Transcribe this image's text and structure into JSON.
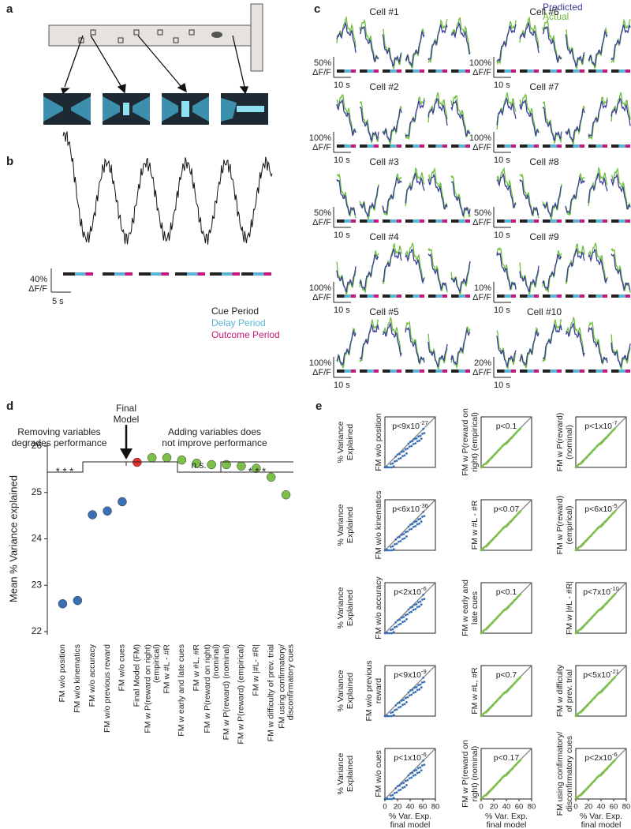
{
  "panel_labels": [
    "a",
    "b",
    "c",
    "d",
    "e"
  ],
  "panel_b": {
    "scale_y": "40%",
    "scale_unit": "ΔF/F",
    "scale_x": "5 s",
    "legend": [
      {
        "name": "Cue Period",
        "color": "#222222"
      },
      {
        "name": "Delay Period",
        "color": "#5ab4d6"
      },
      {
        "name": "Outcome Period",
        "color": "#c8177a"
      }
    ]
  },
  "panel_c": {
    "legend": [
      {
        "name": "Predicted",
        "color": "#3b3e98"
      },
      {
        "name": "Actual",
        "color": "#6cbf3c"
      }
    ],
    "scale_unit": "ΔF/F",
    "scale_x": "10 s",
    "cells": [
      {
        "title": "Cell #1",
        "scale_y": "50%"
      },
      {
        "title": "Cell #2",
        "scale_y": "100%"
      },
      {
        "title": "Cell #3",
        "scale_y": "50%"
      },
      {
        "title": "Cell #4",
        "scale_y": "100%"
      },
      {
        "title": "Cell #5",
        "scale_y": "100%"
      },
      {
        "title": "Cell #6",
        "scale_y": "100%"
      },
      {
        "title": "Cell #7",
        "scale_y": "100%"
      },
      {
        "title": "Cell #8",
        "scale_y": "50%"
      },
      {
        "title": "Cell #9",
        "scale_y": "10%"
      },
      {
        "title": "Cell #10",
        "scale_y": "20%"
      }
    ]
  },
  "chart_data": {
    "type": "dot",
    "y_label": "Mean % Variance explained",
    "annotations": {
      "final": [
        "Final",
        "Model"
      ],
      "removing": [
        "Removing variables",
        "degrades performance"
      ],
      "adding": [
        "Adding variables does",
        "not improve performance"
      ],
      "sig_left": "* * *",
      "ns": "n.s.",
      "sig_right": "* * *"
    },
    "categories": [
      "FM w/o position",
      "FM w/o kinematics",
      "FM w/o accuracy",
      "FM w/o previous reward",
      "FM w/o cues",
      "Final Model (FM)",
      "FM w P(reward on right)\n(empirical)",
      "FM w #L - #R",
      "FM w early and late cues",
      "FM w #L, #R",
      "FM w P(reward on right)\n(nominal)",
      "FM w P(reward) (nominal)",
      "FM w P(reward) (empirical)",
      "FM w |#L- #R|",
      "FM w difficulty of prev. trial",
      "FM using confirmatory/\ndisconfirmatory cues"
    ],
    "values": [
      22.6,
      22.67,
      24.52,
      24.6,
      24.8,
      25.65,
      25.75,
      25.75,
      25.7,
      25.63,
      25.6,
      25.6,
      25.57,
      25.52,
      25.33,
      24.95
    ],
    "colors": [
      "#3a6fb5",
      "#3a6fb5",
      "#3a6fb5",
      "#3a6fb5",
      "#3a6fb5",
      "#e8302a",
      "#7cc04a",
      "#7cc04a",
      "#7cc04a",
      "#7cc04a",
      "#7cc04a",
      "#7cc04a",
      "#7cc04a",
      "#7cc04a",
      "#7cc04a",
      "#7cc04a"
    ],
    "ylim": [
      22,
      26
    ],
    "yticks": [
      22,
      23,
      24,
      25,
      26
    ]
  },
  "panel_e": {
    "y_label": [
      "% Variance",
      "Explained"
    ],
    "x_label": [
      "% Var. Exp.",
      "final model"
    ],
    "xlim": [
      0,
      80
    ],
    "xticks": [
      0,
      20,
      40,
      60,
      80
    ],
    "panels": [
      {
        "label": [
          "FM w/o position"
        ],
        "p": "p<9x10",
        "exp": "-27"
      },
      {
        "label": [
          "FM w P(reward on",
          "right) (empirical)"
        ],
        "p": "p<0.1"
      },
      {
        "label": [
          "FM w P(reward)",
          "(nominal)"
        ],
        "p": "p<1x10",
        "exp": "-7"
      },
      {
        "label": [
          "FM w/o kinematics"
        ],
        "p": "p<6x10",
        "exp": "-36"
      },
      {
        "label": [
          "FM w #L - #R"
        ],
        "p": "p<0.07"
      },
      {
        "label": [
          "FM w P(reward)",
          "(empirical)"
        ],
        "p": "p<6x10",
        "exp": "-5"
      },
      {
        "label": [
          "FM w/o accuracy"
        ],
        "p": "p<2x10",
        "exp": "-6"
      },
      {
        "label": [
          "FM w early and",
          "late cues"
        ],
        "p": "p<0.1"
      },
      {
        "label": [
          "FM w |#L - #R|"
        ],
        "p": "p<7x10",
        "exp": "-10"
      },
      {
        "label": [
          "FM w/o previous",
          "reward"
        ],
        "p": "p<9x10",
        "exp": "-9"
      },
      {
        "label": [
          "FM w #L, #R"
        ],
        "p": "p<0.7"
      },
      {
        "label": [
          "FM w difficulty",
          "of prev. trial"
        ],
        "p": "p<5x10",
        "exp": "-21"
      },
      {
        "label": [
          "FM w/o cues"
        ],
        "p": "p<1x10",
        "exp": "-6"
      },
      {
        "label": [
          "FM w P(reward on",
          "right) (nominal)"
        ],
        "p": "p<0.17"
      },
      {
        "label": [
          "FM using confirmatory/",
          "disconfirmatory cues"
        ],
        "p": "p<2x10",
        "exp": "-6"
      }
    ]
  }
}
